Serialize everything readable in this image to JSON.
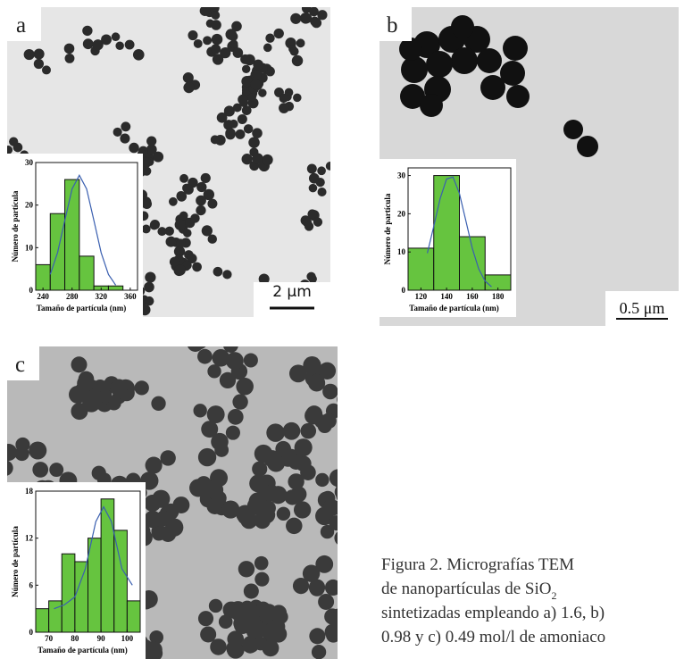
{
  "chart_data": [
    {
      "type": "histogram",
      "bins": [
        230,
        250,
        270,
        290,
        310,
        330,
        350
      ],
      "values": [
        6,
        18,
        26,
        8,
        1,
        1
      ],
      "color": "#66c43f",
      "xlim": [
        230,
        370
      ],
      "xticks": [
        240,
        280,
        320,
        360
      ],
      "ylim": [
        0,
        30
      ],
      "yticks": [
        0,
        10,
        20,
        30
      ],
      "x_label": "Tamaño de partícula (nm)",
      "y_label": "Número de partícula",
      "fit": {
        "color": "#3a5fb0",
        "x": [
          250,
          260,
          270,
          280,
          290,
          300,
          310,
          320,
          330,
          340
        ],
        "values": [
          3.7,
          8.8,
          16.4,
          23.8,
          27,
          23.8,
          16.4,
          8.8,
          3.7,
          1.2
        ]
      }
    },
    {
      "type": "histogram",
      "bins": [
        110,
        130,
        150,
        170,
        190
      ],
      "values": [
        11,
        30,
        14,
        4
      ],
      "color": "#66c43f",
      "xlim": [
        110,
        190
      ],
      "xticks": [
        120,
        140,
        160,
        180
      ],
      "ylim": [
        0,
        32
      ],
      "yticks": [
        0,
        10,
        20,
        30
      ],
      "x_label": "Tamaño de partícula (nm)",
      "y_label": "Número de partícula",
      "fit": {
        "color": "#3a5fb0",
        "x": [
          125,
          130,
          135,
          140,
          145,
          150,
          155,
          160,
          165,
          170,
          175
        ],
        "values": [
          9.7,
          16.7,
          24,
          29.1,
          29.6,
          25.3,
          18.2,
          11,
          5.6,
          2.4,
          0.9
        ]
      }
    },
    {
      "type": "histogram",
      "bins": [
        65,
        70,
        75,
        80,
        85,
        90,
        95,
        100,
        105
      ],
      "values": [
        3,
        4,
        10,
        9,
        12,
        17,
        13,
        4
      ],
      "color": "#66c43f",
      "xlim": [
        65,
        105
      ],
      "xticks": [
        70,
        80,
        90,
        100
      ],
      "ylim": [
        0,
        18
      ],
      "yticks": [
        0,
        6,
        12,
        18
      ],
      "x_label": "Tamaño de partícula (nm)",
      "y_label": "Número de partícula",
      "fit": {
        "color": "#3a5fb0",
        "x": [
          72,
          76,
          80,
          84,
          88,
          91,
          94,
          98,
          102
        ],
        "values": [
          3,
          3.5,
          4.5,
          8.1,
          14.1,
          16,
          14.1,
          8.1,
          6
        ]
      }
    }
  ],
  "panels": [
    {
      "label": "a",
      "scale_bar": "2 μm"
    },
    {
      "label": "b",
      "scale_bar": "0.5 μm"
    },
    {
      "label": "c"
    }
  ],
  "caption": {
    "line1": "Figura 2. Micrografías TEM",
    "line2": "de nanopartículas de SiO",
    "subscript": "2",
    "line3": "sintetizadas empleando a) 1.6, b)",
    "line4": "0.98 y c) 0.49 mol/l de amoniaco"
  }
}
